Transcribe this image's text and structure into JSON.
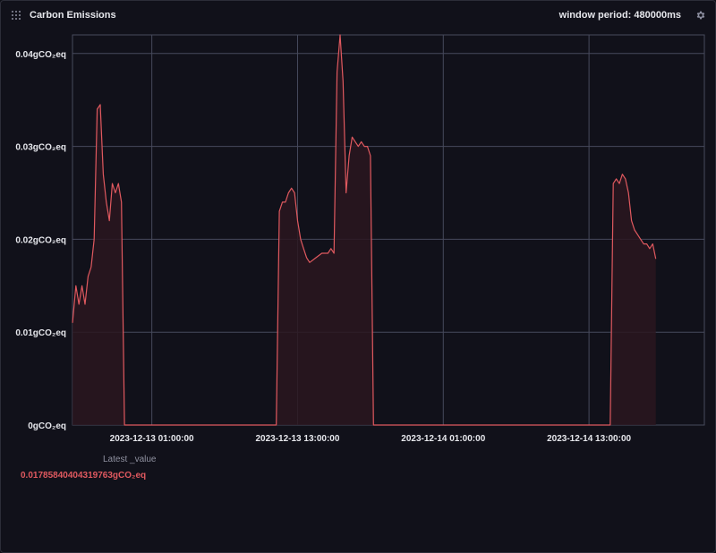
{
  "header": {
    "title": "Carbon Emissions",
    "window_period_label": "window period: 480000ms",
    "drag_icon": "grip-dots-icon",
    "settings_icon": "gear-icon"
  },
  "legend": {
    "column_header": "Latest _value",
    "latest_value": "0.01785840404319763gCO₂eq",
    "value_color": "#e0595f"
  },
  "colors": {
    "line": "#e0595f",
    "fill": "#2a1620",
    "grid": "#474a5c",
    "background": "#11111a"
  },
  "chart_data": {
    "type": "area",
    "title": "Carbon Emissions",
    "unit": "gCO₂eq",
    "ylim": [
      0,
      0.042
    ],
    "xlim": [
      "2023-12-12 18:28:00",
      "2023-12-14 22:30:00"
    ],
    "yticks": [
      0,
      0.01,
      0.02,
      0.03,
      0.04
    ],
    "ytick_labels": [
      "0gCO₂eq",
      "0.01gCO₂eq",
      "0.02gCO₂eq",
      "0.03gCO₂eq",
      "0.04gCO₂eq"
    ],
    "xticks": [
      "2023-12-13 01:00:00",
      "2023-12-13 13:00:00",
      "2023-12-14 01:00:00",
      "2023-12-14 13:00:00"
    ],
    "xtick_labels": [
      "2023-12-13 01:00:00",
      "2023-12-13 13:00:00",
      "2023-12-14 01:00:00",
      "2023-12-14 13:00:00"
    ],
    "grid": true,
    "series": [
      {
        "points": [
          [
            "2023-12-12 18:28",
            0.011
          ],
          [
            "2023-12-12 18:45",
            0.015
          ],
          [
            "2023-12-12 19:00",
            0.013
          ],
          [
            "2023-12-12 19:15",
            0.015
          ],
          [
            "2023-12-12 19:30",
            0.013
          ],
          [
            "2023-12-12 19:45",
            0.016
          ],
          [
            "2023-12-12 20:00",
            0.017
          ],
          [
            "2023-12-12 20:15",
            0.02
          ],
          [
            "2023-12-12 20:30",
            0.034
          ],
          [
            "2023-12-12 20:45",
            0.0345
          ],
          [
            "2023-12-12 21:00",
            0.027
          ],
          [
            "2023-12-12 21:15",
            0.024
          ],
          [
            "2023-12-12 21:30",
            0.022
          ],
          [
            "2023-12-12 21:45",
            0.026
          ],
          [
            "2023-12-12 22:00",
            0.025
          ],
          [
            "2023-12-12 22:15",
            0.026
          ],
          [
            "2023-12-12 22:30",
            0.024
          ],
          [
            "2023-12-12 22:45",
            0.0
          ],
          [
            "2023-12-13 11:15",
            0.0
          ],
          [
            "2023-12-13 11:30",
            0.023
          ],
          [
            "2023-12-13 11:45",
            0.024
          ],
          [
            "2023-12-13 12:00",
            0.024
          ],
          [
            "2023-12-13 12:15",
            0.025
          ],
          [
            "2023-12-13 12:30",
            0.0255
          ],
          [
            "2023-12-13 12:45",
            0.025
          ],
          [
            "2023-12-13 13:00",
            0.022
          ],
          [
            "2023-12-13 13:15",
            0.02
          ],
          [
            "2023-12-13 13:30",
            0.019
          ],
          [
            "2023-12-13 13:45",
            0.018
          ],
          [
            "2023-12-13 14:00",
            0.0175
          ],
          [
            "2023-12-13 14:30",
            0.018
          ],
          [
            "2023-12-13 15:00",
            0.0185
          ],
          [
            "2023-12-13 15:30",
            0.0185
          ],
          [
            "2023-12-13 15:45",
            0.019
          ],
          [
            "2023-12-13 16:00",
            0.0185
          ],
          [
            "2023-12-13 16:15",
            0.038
          ],
          [
            "2023-12-13 16:30",
            0.042
          ],
          [
            "2023-12-13 16:45",
            0.037
          ],
          [
            "2023-12-13 17:00",
            0.025
          ],
          [
            "2023-12-13 17:15",
            0.029
          ],
          [
            "2023-12-13 17:30",
            0.031
          ],
          [
            "2023-12-13 17:45",
            0.0305
          ],
          [
            "2023-12-13 18:00",
            0.03
          ],
          [
            "2023-12-13 18:15",
            0.0305
          ],
          [
            "2023-12-13 18:30",
            0.03
          ],
          [
            "2023-12-13 18:45",
            0.03
          ],
          [
            "2023-12-13 19:00",
            0.029
          ],
          [
            "2023-12-13 19:15",
            0.0
          ],
          [
            "2023-12-14 14:45",
            0.0
          ],
          [
            "2023-12-14 15:00",
            0.026
          ],
          [
            "2023-12-14 15:15",
            0.0265
          ],
          [
            "2023-12-14 15:30",
            0.026
          ],
          [
            "2023-12-14 15:45",
            0.027
          ],
          [
            "2023-12-14 16:00",
            0.0265
          ],
          [
            "2023-12-14 16:15",
            0.025
          ],
          [
            "2023-12-14 16:30",
            0.022
          ],
          [
            "2023-12-14 16:45",
            0.021
          ],
          [
            "2023-12-14 17:00",
            0.0205
          ],
          [
            "2023-12-14 17:15",
            0.02
          ],
          [
            "2023-12-14 17:30",
            0.0195
          ],
          [
            "2023-12-14 17:45",
            0.0195
          ],
          [
            "2023-12-14 18:00",
            0.019
          ],
          [
            "2023-12-14 18:15",
            0.0195
          ],
          [
            "2023-12-14 18:30",
            0.0179
          ]
        ]
      }
    ]
  }
}
